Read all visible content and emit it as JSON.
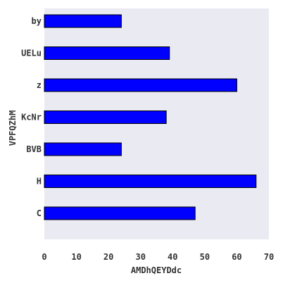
{
  "chart_data": {
    "type": "bar",
    "orientation": "horizontal",
    "categories": [
      "C",
      "H",
      "BVB",
      "KcNr",
      "z",
      "UELu",
      "by"
    ],
    "values": [
      47,
      66,
      24,
      38,
      60,
      39,
      24
    ],
    "xlabel": "AMDhQEYDdc",
    "ylabel": "VPFQZhM",
    "xlim": [
      0,
      70
    ],
    "xticks": [
      0,
      10,
      20,
      30,
      40,
      50,
      60,
      70
    ],
    "grid": false,
    "bar_color": "#0000ff",
    "bar_edge_color": "#000000",
    "background_color": "#eaeaf2"
  }
}
